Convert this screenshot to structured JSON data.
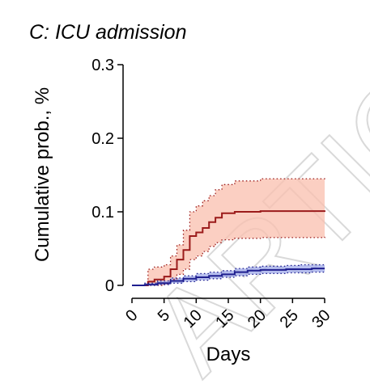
{
  "watermark": "ARTICLE",
  "chart_data": {
    "type": "line",
    "step": true,
    "title": "C: ICU admission",
    "xlabel": "Days",
    "ylabel": "Cumulative prob., %",
    "xlim": [
      0,
      30
    ],
    "ylim": [
      0,
      0.3
    ],
    "x_ticks": [
      0,
      5,
      10,
      15,
      20,
      25,
      30
    ],
    "x_tick_labels": [
      "0",
      "5",
      "10",
      "15",
      "20",
      "25",
      "30"
    ],
    "y_ticks": [
      0,
      0.1,
      0.2,
      0.3
    ],
    "y_tick_labels": [
      "0",
      "0.1",
      "0.2",
      "0.3"
    ],
    "grid": false,
    "series": [
      {
        "color": "#9b1b1b",
        "band_color": "#f9bfad",
        "x": [
          0,
          2.5,
          3.5,
          5,
          6,
          7,
          8,
          9,
          10,
          11,
          12,
          13,
          14,
          16,
          20,
          30
        ],
        "y": [
          0,
          0.005,
          0.008,
          0.012,
          0.022,
          0.035,
          0.048,
          0.067,
          0.072,
          0.078,
          0.086,
          0.092,
          0.098,
          0.1,
          0.101,
          0.102
        ],
        "lower": [
          0,
          0,
          0,
          0.002,
          0.008,
          0.015,
          0.022,
          0.035,
          0.04,
          0.046,
          0.053,
          0.058,
          0.062,
          0.064,
          0.065,
          0.066
        ],
        "upper": [
          0,
          0.022,
          0.025,
          0.028,
          0.04,
          0.055,
          0.075,
          0.1,
          0.108,
          0.115,
          0.122,
          0.13,
          0.137,
          0.142,
          0.145,
          0.147
        ]
      },
      {
        "color": "#1f1f8f",
        "band_color": "#9da8e8",
        "x": [
          0,
          2,
          4,
          6,
          8,
          10,
          12,
          14,
          16,
          18,
          20,
          22,
          24,
          26,
          28,
          30
        ],
        "y": [
          0,
          0.001,
          0.003,
          0.006,
          0.009,
          0.011,
          0.013,
          0.015,
          0.018,
          0.02,
          0.021,
          0.021,
          0.022,
          0.022,
          0.023,
          0.023
        ],
        "lower": [
          0,
          0,
          0.001,
          0.003,
          0.005,
          0.007,
          0.009,
          0.011,
          0.013,
          0.015,
          0.016,
          0.016,
          0.017,
          0.017,
          0.018,
          0.018
        ],
        "upper": [
          0,
          0.003,
          0.006,
          0.01,
          0.013,
          0.016,
          0.018,
          0.02,
          0.023,
          0.025,
          0.026,
          0.026,
          0.027,
          0.028,
          0.028,
          0.029
        ]
      }
    ]
  }
}
